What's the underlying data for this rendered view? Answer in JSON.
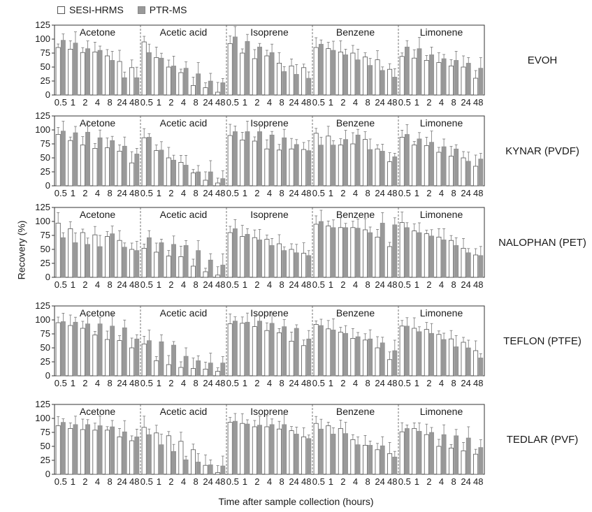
{
  "legend": {
    "series_a": "SESI-HRMS",
    "series_b": "PTR-MS"
  },
  "ylabel": "Recovery (%)",
  "xlabel": "Time after sample collection (hours)",
  "colors": {
    "series_a": "#ffffff",
    "series_b": "#999999",
    "stroke": "#555555"
  },
  "chart_data": {
    "type": "bar",
    "ylim": [
      0,
      125
    ],
    "yticks": [
      0,
      25,
      50,
      75,
      100,
      125
    ],
    "groups": [
      "Acetone",
      "Acetic acid",
      "Isoprene",
      "Benzene",
      "Limonene"
    ],
    "x": [
      "0.5",
      "1",
      "2",
      "4",
      "8",
      "24",
      "48"
    ],
    "series_names": [
      "SESI-HRMS",
      "PTR-MS"
    ],
    "panels": [
      {
        "name": "EVOH",
        "values": {
          "Acetone": {
            "SESI-HRMS": [
              85,
              82,
              76,
              77,
              70,
              60,
              49
            ],
            "PTR-MS": [
              98,
              93,
              83,
              80,
              62,
              31,
              31
            ]
          },
          "Acetic acid": {
            "SESI-HRMS": [
              95,
              67,
              50,
              40,
              17,
              13,
              5
            ],
            "PTR-MS": [
              76,
              66,
              52,
              48,
              38,
              25,
              22
            ]
          },
          "Isoprene": {
            "SESI-HRMS": [
              92,
              75,
              65,
              70,
              57,
              52,
              49
            ],
            "PTR-MS": [
              104,
              96,
              86,
              76,
              42,
              37,
              30
            ]
          },
          "Benzene": {
            "SESI-HRMS": [
              85,
              83,
              77,
              75,
              68,
              63,
              46
            ],
            "PTR-MS": [
              91,
              80,
              72,
              63,
              53,
              44,
              32
            ]
          },
          "Limonene": {
            "SESI-HRMS": [
              69,
              66,
              62,
              58,
              52,
              50,
              30
            ],
            "PTR-MS": [
              86,
              83,
              72,
              65,
              62,
              57,
              48
            ]
          }
        }
      },
      {
        "name": "KYNAR (PVDF)",
        "values": {
          "Acetone": {
            "SESI-HRMS": [
              92,
              81,
              73,
              67,
              68,
              62,
              41
            ],
            "PTR-MS": [
              98,
              95,
              96,
              86,
              81,
              71,
              57
            ]
          },
          "Acetic acid": {
            "SESI-HRMS": [
              86,
              63,
              50,
              42,
              23,
              10,
              5
            ],
            "PTR-MS": [
              87,
              64,
              46,
              37,
              25,
              25,
              13
            ]
          },
          "Isoprene": {
            "SESI-HRMS": [
              90,
              82,
              80,
              66,
              64,
              66,
              65
            ],
            "PTR-MS": [
              97,
              97,
              97,
              91,
              86,
              74,
              63
            ]
          },
          "Benzene": {
            "SESI-HRMS": [
              94,
              89,
              73,
              75,
              83,
              66,
              43
            ],
            "PTR-MS": [
              73,
              73,
              83,
              91,
              65,
              62,
              52
            ]
          },
          "Limonene": {
            "SESI-HRMS": [
              87,
              73,
              72,
              60,
              53,
              50,
              35
            ],
            "PTR-MS": [
              92,
              84,
              78,
              70,
              66,
              44,
              48
            ]
          }
        }
      },
      {
        "name": "NALOPHAN (PET)",
        "values": {
          "Acetone": {
            "SESI-HRMS": [
              97,
              87,
              80,
              76,
              73,
              66,
              50
            ],
            "PTR-MS": [
              71,
              62,
              59,
              55,
              78,
              54,
              48
            ]
          },
          "Acetic acid": {
            "SESI-HRMS": [
              52,
              45,
              38,
              37,
              20,
              10,
              4
            ],
            "PTR-MS": [
              71,
              62,
              59,
              57,
              48,
              31,
              22
            ]
          },
          "Isoprene": {
            "SESI-HRMS": [
              80,
              73,
              71,
              68,
              60,
              50,
              43
            ],
            "PTR-MS": [
              87,
              77,
              67,
              57,
              48,
              44,
              39
            ]
          },
          "Benzene": {
            "SESI-HRMS": [
              95,
              92,
              89,
              89,
              85,
              72,
              55
            ],
            "PTR-MS": [
              100,
              89,
              89,
              88,
              80,
              97,
              94
            ]
          },
          "Limonene": {
            "SESI-HRMS": [
              98,
              83,
              78,
              72,
              66,
              52,
              40
            ],
            "PTR-MS": [
              89,
              80,
              74,
              67,
              57,
              44,
              39
            ]
          }
        }
      },
      {
        "name": "TEFLON (PTFE)",
        "values": {
          "Acetone": {
            "SESI-HRMS": [
              95,
              90,
              85,
              73,
              65,
              63,
              50
            ],
            "PTR-MS": [
              97,
              96,
              93,
              93,
              89,
              86,
              66
            ]
          },
          "Acetic acid": {
            "SESI-HRMS": [
              57,
              27,
              20,
              15,
              13,
              12,
              8
            ],
            "PTR-MS": [
              63,
              61,
              55,
              35,
              27,
              23,
              23
            ]
          },
          "Isoprene": {
            "SESI-HRMS": [
              93,
              94,
              88,
              81,
              77,
              62,
              54
            ],
            "PTR-MS": [
              98,
              96,
              98,
              94,
              88,
              85,
              66
            ]
          },
          "Benzene": {
            "SESI-HRMS": [
              92,
              84,
              78,
              67,
              64,
              50,
              29
            ],
            "PTR-MS": [
              90,
              82,
              76,
              70,
              66,
              59,
              45
            ]
          },
          "Limonene": {
            "SESI-HRMS": [
              89,
              85,
              83,
              74,
              66,
              60,
              45
            ],
            "PTR-MS": [
              89,
              79,
              76,
              65,
              52,
              50,
              32
            ]
          }
        }
      },
      {
        "name": "TEDLAR (PVF)",
        "values": {
          "Acetone": {
            "SESI-HRMS": [
              87,
              82,
              80,
              79,
              79,
              67,
              60
            ],
            "PTR-MS": [
              93,
              89,
              89,
              87,
              85,
              76,
              67
            ]
          },
          "Acetic acid": {
            "SESI-HRMS": [
              84,
              74,
              69,
              59,
              44,
              16,
              3
            ],
            "PTR-MS": [
              71,
              53,
              41,
              26,
              22,
              17,
              15
            ]
          },
          "Isoprene": {
            "SESI-HRMS": [
              93,
              91,
              85,
              85,
              81,
              78,
              67
            ],
            "PTR-MS": [
              95,
              90,
              88,
              89,
              89,
              72,
              64
            ]
          },
          "Benzene": {
            "SESI-HRMS": [
              91,
              87,
              82,
              62,
              52,
              44,
              37
            ],
            "PTR-MS": [
              81,
              72,
              73,
              53,
              52,
              51,
              31
            ]
          },
          "Limonene": {
            "SESI-HRMS": [
              76,
              82,
              71,
              50,
              47,
              42,
              36
            ],
            "PTR-MS": [
              82,
              77,
              75,
              71,
              69,
              65,
              48
            ]
          }
        }
      }
    ]
  }
}
